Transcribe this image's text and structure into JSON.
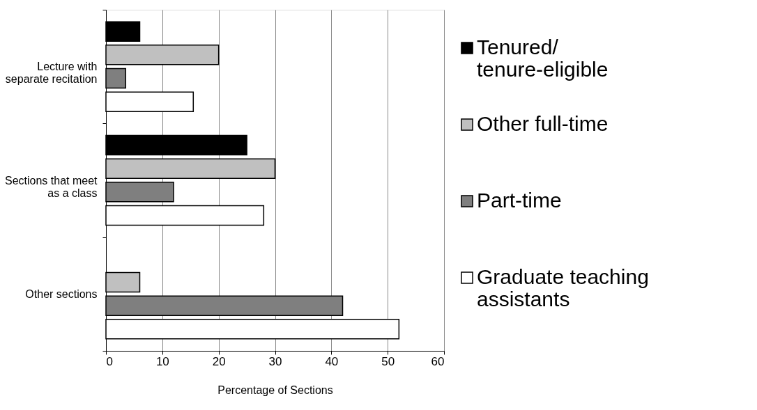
{
  "chart_data": {
    "type": "bar",
    "orientation": "horizontal",
    "xlabel": "Percentage of Sections",
    "categories": [
      "Lecture with separate recitation",
      "Sections that meet as a class",
      "Other sections"
    ],
    "series": [
      {
        "name": "Tenured/ tenure-eligible",
        "color": "#000000",
        "values": [
          6,
          25,
          null
        ]
      },
      {
        "name": "Other full-time",
        "color": "#c0c0c0",
        "values": [
          20,
          30,
          6
        ]
      },
      {
        "name": "Part-time",
        "color": "#7f7f7f",
        "values": [
          3.5,
          12,
          42
        ]
      },
      {
        "name": "Graduate teaching assistants",
        "color": "#ffffff",
        "values": [
          15.5,
          28,
          52
        ]
      }
    ],
    "xlim": [
      0,
      60
    ],
    "xticks": [
      0,
      10,
      20,
      30,
      40,
      50,
      60
    ],
    "grid": "x",
    "legend": "right"
  }
}
